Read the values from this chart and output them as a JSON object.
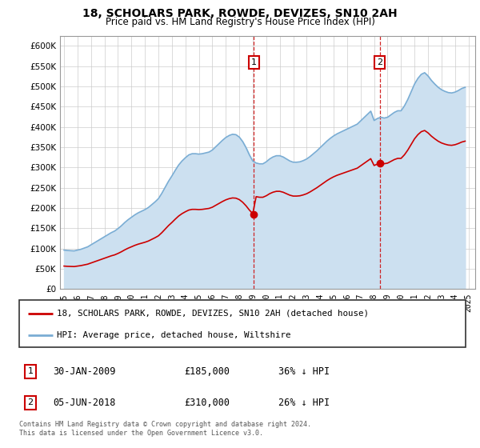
{
  "title": "18, SCHOLARS PARK, ROWDE, DEVIZES, SN10 2AH",
  "subtitle": "Price paid vs. HM Land Registry's House Price Index (HPI)",
  "ylim": [
    0,
    625000
  ],
  "xlim_years": [
    1994.7,
    2025.5
  ],
  "yticks": [
    0,
    50000,
    100000,
    150000,
    200000,
    250000,
    300000,
    350000,
    400000,
    450000,
    500000,
    550000,
    600000
  ],
  "ytick_labels": [
    "£0",
    "£50K",
    "£100K",
    "£150K",
    "£200K",
    "£250K",
    "£300K",
    "£350K",
    "£400K",
    "£450K",
    "£500K",
    "£550K",
    "£600K"
  ],
  "xtick_years": [
    1995,
    1996,
    1997,
    1998,
    1999,
    2000,
    2001,
    2002,
    2003,
    2004,
    2005,
    2006,
    2007,
    2008,
    2009,
    2010,
    2011,
    2012,
    2013,
    2014,
    2015,
    2016,
    2017,
    2018,
    2019,
    2020,
    2021,
    2022,
    2023,
    2024,
    2025
  ],
  "sale1_year": 2009.08,
  "sale1_price": 185000,
  "sale1_label": "30-JAN-2009",
  "sale1_amount": "£185,000",
  "sale1_note": "36% ↓ HPI",
  "sale1_num": "1",
  "sale2_year": 2018.42,
  "sale2_price": 310000,
  "sale2_label": "05-JUN-2018",
  "sale2_amount": "£310,000",
  "sale2_note": "26% ↓ HPI",
  "sale2_num": "2",
  "hpi_color": "#7aadd4",
  "hpi_fill_color": "#cce0f0",
  "sale_line_color": "#cc0000",
  "vline_color": "#cc0000",
  "background_color": "#ffffff",
  "plot_bg_color": "#ffffff",
  "grid_color": "#cccccc",
  "legend_label_red": "18, SCHOLARS PARK, ROWDE, DEVIZES, SN10 2AH (detached house)",
  "legend_label_blue": "HPI: Average price, detached house, Wiltshire",
  "footer": "Contains HM Land Registry data © Crown copyright and database right 2024.\nThis data is licensed under the Open Government Licence v3.0.",
  "hpi_years": [
    1995.0,
    1995.25,
    1995.5,
    1995.75,
    1996.0,
    1996.25,
    1996.5,
    1996.75,
    1997.0,
    1997.25,
    1997.5,
    1997.75,
    1998.0,
    1998.25,
    1998.5,
    1998.75,
    1999.0,
    1999.25,
    1999.5,
    1999.75,
    2000.0,
    2000.25,
    2000.5,
    2000.75,
    2001.0,
    2001.25,
    2001.5,
    2001.75,
    2002.0,
    2002.25,
    2002.5,
    2002.75,
    2003.0,
    2003.25,
    2003.5,
    2003.75,
    2004.0,
    2004.25,
    2004.5,
    2004.75,
    2005.0,
    2005.25,
    2005.5,
    2005.75,
    2006.0,
    2006.25,
    2006.5,
    2006.75,
    2007.0,
    2007.25,
    2007.5,
    2007.75,
    2008.0,
    2008.25,
    2008.5,
    2008.75,
    2009.0,
    2009.25,
    2009.5,
    2009.75,
    2010.0,
    2010.25,
    2010.5,
    2010.75,
    2011.0,
    2011.25,
    2011.5,
    2011.75,
    2012.0,
    2012.25,
    2012.5,
    2012.75,
    2013.0,
    2013.25,
    2013.5,
    2013.75,
    2014.0,
    2014.25,
    2014.5,
    2014.75,
    2015.0,
    2015.25,
    2015.5,
    2015.75,
    2016.0,
    2016.25,
    2016.5,
    2016.75,
    2017.0,
    2017.25,
    2017.5,
    2017.75,
    2018.0,
    2018.25,
    2018.5,
    2018.75,
    2019.0,
    2019.25,
    2019.5,
    2019.75,
    2020.0,
    2020.25,
    2020.5,
    2020.75,
    2021.0,
    2021.25,
    2021.5,
    2021.75,
    2022.0,
    2022.25,
    2022.5,
    2022.75,
    2023.0,
    2023.25,
    2023.5,
    2023.75,
    2024.0,
    2024.25,
    2024.5,
    2024.75
  ],
  "hpi_values": [
    96000,
    95000,
    94500,
    94000,
    96000,
    98000,
    101000,
    104000,
    109000,
    114000,
    119000,
    124000,
    129000,
    134000,
    139000,
    143000,
    149000,
    156000,
    164000,
    171000,
    177000,
    183000,
    188000,
    192000,
    196000,
    201000,
    208000,
    215000,
    223000,
    236000,
    251000,
    266000,
    279000,
    293000,
    306000,
    316000,
    324000,
    331000,
    334000,
    334000,
    333000,
    334000,
    336000,
    338000,
    343000,
    351000,
    359000,
    367000,
    374000,
    379000,
    382000,
    381000,
    375000,
    364000,
    349000,
    331000,
    316000,
    311000,
    309000,
    309000,
    314000,
    321000,
    326000,
    329000,
    329000,
    326000,
    321000,
    316000,
    313000,
    313000,
    314000,
    317000,
    321000,
    327000,
    334000,
    341000,
    349000,
    357000,
    365000,
    372000,
    378000,
    383000,
    387000,
    391000,
    395000,
    399000,
    403000,
    407000,
    415000,
    423000,
    431000,
    439000,
    416000,
    421000,
    424000,
    422000,
    424000,
    430000,
    436000,
    440000,
    440000,
    452000,
    468000,
    487000,
    506000,
    520000,
    530000,
    534000,
    526000,
    515000,
    506000,
    498000,
    492000,
    488000,
    485000,
    484000,
    486000,
    490000,
    495000,
    498000
  ]
}
